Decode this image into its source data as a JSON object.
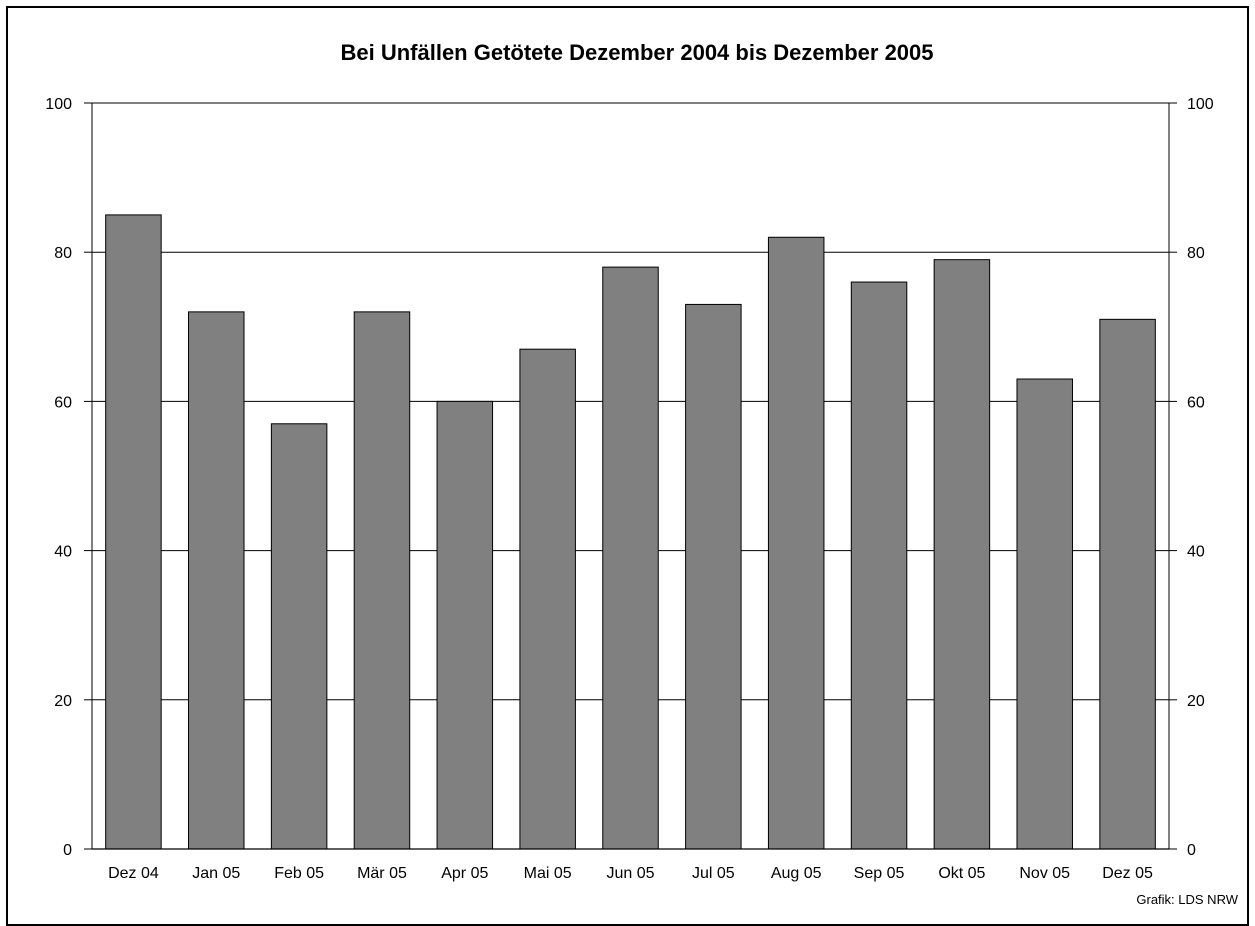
{
  "chart_data": {
    "type": "bar",
    "title": "Bei Unfällen Getötete Dezember 2004 bis Dezember 2005",
    "categories": [
      "Dez 04",
      "Jan 05",
      "Feb 05",
      "Mär 05",
      "Apr 05",
      "Mai 05",
      "Jun 05",
      "Jul 05",
      "Aug 05",
      "Sep 05",
      "Okt 05",
      "Nov 05",
      "Dez 05"
    ],
    "values": [
      85,
      72,
      57,
      72,
      60,
      67,
      78,
      73,
      82,
      76,
      79,
      63,
      71
    ],
    "ylim": [
      0,
      100
    ],
    "yticks": [
      0,
      20,
      40,
      60,
      80,
      100
    ],
    "xlabel": "",
    "ylabel": "",
    "grid": true,
    "legend": "none",
    "bar_color": "#808080",
    "source": "Grafik: LDS NRW"
  }
}
